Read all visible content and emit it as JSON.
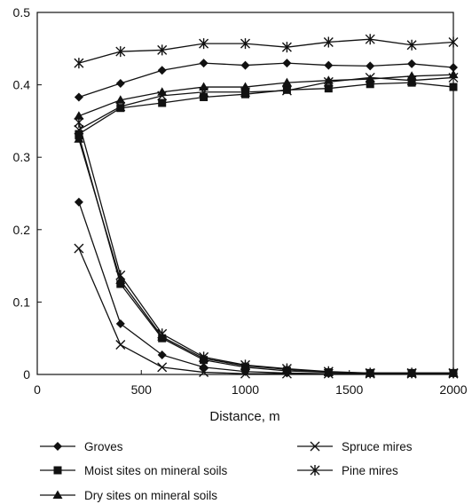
{
  "chart_data": {
    "type": "line",
    "title": "",
    "xlabel": "Distance, m",
    "ylabel": "",
    "xlim": [
      0,
      2000
    ],
    "ylim": [
      0,
      0.5
    ],
    "x_ticks": [
      "0",
      "500",
      "1000",
      "1500",
      "2000"
    ],
    "y_ticks": [
      "0",
      "0.1",
      "0.2",
      "0.3",
      "0.4",
      "0.5"
    ],
    "x": [
      200,
      400,
      600,
      800,
      1000,
      1200,
      1400,
      1600,
      1800,
      2000
    ],
    "grid": false,
    "legend_position": "bottom",
    "line_color": "#111111",
    "series": [
      {
        "name": "Groves",
        "marker": "diamond",
        "upper": [
          0.383,
          0.402,
          0.42,
          0.43,
          0.427,
          0.43,
          0.427,
          0.426,
          0.429,
          0.424
        ],
        "lower": [
          0.238,
          0.07,
          0.027,
          0.01,
          0.004,
          0.002,
          0.001,
          0.001,
          0.001,
          0.001
        ]
      },
      {
        "name": "Moist sites on mineral soils",
        "marker": "square",
        "upper": [
          0.332,
          0.368,
          0.375,
          0.383,
          0.387,
          0.393,
          0.395,
          0.401,
          0.403,
          0.397
        ],
        "lower": [
          0.33,
          0.125,
          0.05,
          0.02,
          0.01,
          0.005,
          0.003,
          0.002,
          0.002,
          0.002
        ]
      },
      {
        "name": "Dry sites on mineral soils",
        "marker": "triangle",
        "upper": [
          0.357,
          0.379,
          0.39,
          0.397,
          0.397,
          0.403,
          0.406,
          0.408,
          0.412,
          0.414
        ],
        "lower": [
          0.325,
          0.13,
          0.052,
          0.022,
          0.012,
          0.007,
          0.003,
          0.002,
          0.002,
          0.002
        ]
      },
      {
        "name": "Spruce mires",
        "marker": "x",
        "upper": [
          0.338,
          0.37,
          0.385,
          0.39,
          0.39,
          0.392,
          0.404,
          0.41,
          0.406,
          0.41
        ],
        "lower": [
          0.174,
          0.041,
          0.01,
          0.003,
          0.001,
          0.001,
          0.001,
          0.001,
          0.001,
          0.001
        ]
      },
      {
        "name": "Pine mires",
        "marker": "star",
        "upper": [
          0.43,
          0.446,
          0.448,
          0.457,
          0.457,
          0.452,
          0.459,
          0.463,
          0.455,
          0.459
        ],
        "lower": [
          0.348,
          0.137,
          0.056,
          0.024,
          0.013,
          0.008,
          0.004,
          0.002,
          0.002,
          0.002
        ]
      }
    ]
  }
}
